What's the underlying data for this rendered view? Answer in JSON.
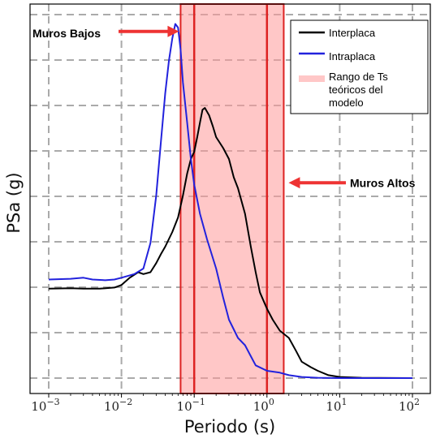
{
  "chart_data": {
    "type": "line",
    "title": "",
    "xlabel": "Periodo (s)",
    "ylabel": "PSa (g)",
    "xscale": "log",
    "xlim": [
      0.001,
      100
    ],
    "ylim": [
      0,
      1.0
    ],
    "grid": true,
    "legend_position": "top-right",
    "x_tick_labels": [
      {
        "base": "10",
        "exp": "−3",
        "value": 0.001
      },
      {
        "base": "10",
        "exp": "−2",
        "value": 0.01
      },
      {
        "base": "10",
        "exp": "−1",
        "value": 0.1
      },
      {
        "base": "10",
        "exp": "0",
        "value": 1
      },
      {
        "base": "10",
        "exp": "1",
        "value": 10
      },
      {
        "base": "10",
        "exp": "2",
        "value": 100
      }
    ],
    "series": [
      {
        "name": "Interplaca",
        "color": "#000000",
        "points": [
          [
            0.001,
            0.245
          ],
          [
            0.002,
            0.246
          ],
          [
            0.003,
            0.245
          ],
          [
            0.005,
            0.245
          ],
          [
            0.008,
            0.248
          ],
          [
            0.01,
            0.255
          ],
          [
            0.013,
            0.275
          ],
          [
            0.017,
            0.29
          ],
          [
            0.02,
            0.285
          ],
          [
            0.025,
            0.29
          ],
          [
            0.03,
            0.315
          ],
          [
            0.035,
            0.34
          ],
          [
            0.04,
            0.36
          ],
          [
            0.05,
            0.4
          ],
          [
            0.06,
            0.44
          ],
          [
            0.07,
            0.5
          ],
          [
            0.08,
            0.56
          ],
          [
            0.09,
            0.6
          ],
          [
            0.1,
            0.62
          ],
          [
            0.11,
            0.66
          ],
          [
            0.12,
            0.7
          ],
          [
            0.13,
            0.735
          ],
          [
            0.14,
            0.74
          ],
          [
            0.16,
            0.72
          ],
          [
            0.18,
            0.69
          ],
          [
            0.2,
            0.66
          ],
          [
            0.25,
            0.63
          ],
          [
            0.3,
            0.6
          ],
          [
            0.35,
            0.55
          ],
          [
            0.4,
            0.52
          ],
          [
            0.5,
            0.45
          ],
          [
            0.6,
            0.36
          ],
          [
            0.7,
            0.29
          ],
          [
            0.8,
            0.235
          ],
          [
            1.0,
            0.19
          ],
          [
            1.2,
            0.16
          ],
          [
            1.5,
            0.13
          ],
          [
            2.0,
            0.11
          ],
          [
            2.5,
            0.075
          ],
          [
            3.0,
            0.045
          ],
          [
            4.0,
            0.03
          ],
          [
            5.0,
            0.02
          ],
          [
            7.0,
            0.008
          ],
          [
            10,
            0.003
          ],
          [
            20,
            0.001
          ],
          [
            100,
            0.0
          ]
        ]
      },
      {
        "name": "Intraplaca",
        "color": "#2222dd",
        "points": [
          [
            0.001,
            0.27
          ],
          [
            0.002,
            0.272
          ],
          [
            0.003,
            0.275
          ],
          [
            0.004,
            0.27
          ],
          [
            0.006,
            0.268
          ],
          [
            0.008,
            0.27
          ],
          [
            0.01,
            0.275
          ],
          [
            0.015,
            0.285
          ],
          [
            0.02,
            0.3
          ],
          [
            0.025,
            0.37
          ],
          [
            0.03,
            0.5
          ],
          [
            0.035,
            0.65
          ],
          [
            0.04,
            0.78
          ],
          [
            0.045,
            0.87
          ],
          [
            0.05,
            0.93
          ],
          [
            0.055,
            0.97
          ],
          [
            0.06,
            0.96
          ],
          [
            0.065,
            0.9
          ],
          [
            0.07,
            0.81
          ],
          [
            0.08,
            0.7
          ],
          [
            0.09,
            0.6
          ],
          [
            0.1,
            0.53
          ],
          [
            0.12,
            0.45
          ],
          [
            0.15,
            0.38
          ],
          [
            0.2,
            0.3
          ],
          [
            0.25,
            0.22
          ],
          [
            0.3,
            0.16
          ],
          [
            0.4,
            0.11
          ],
          [
            0.5,
            0.09
          ],
          [
            0.6,
            0.06
          ],
          [
            0.7,
            0.035
          ],
          [
            1.0,
            0.02
          ],
          [
            1.5,
            0.015
          ],
          [
            2.0,
            0.008
          ],
          [
            3.0,
            0.003
          ],
          [
            5.0,
            0.001
          ],
          [
            10,
            0.0
          ],
          [
            100,
            0.0
          ]
        ]
      }
    ],
    "range_band": {
      "name": "Rango de Ts teóricos del modelo",
      "legend_lines": [
        "Rango de Ts",
        "teóricos del",
        "modelo"
      ],
      "x_start": 0.065,
      "x_end": 1.7,
      "fill": "#ff9999",
      "edge": "#dd2222",
      "inner_lines_x": [
        0.1,
        1.0
      ]
    },
    "annotations": [
      {
        "text": "Muros Bajos",
        "arrow_target_x": 0.065,
        "y": 0.945
      },
      {
        "text": "Muros Altos",
        "arrow_target_x": 1.7,
        "y": 0.535
      }
    ]
  },
  "colors": {
    "grid": "#aaaaaa",
    "arrow": "#ee3333",
    "band_alpha": "0.55"
  }
}
